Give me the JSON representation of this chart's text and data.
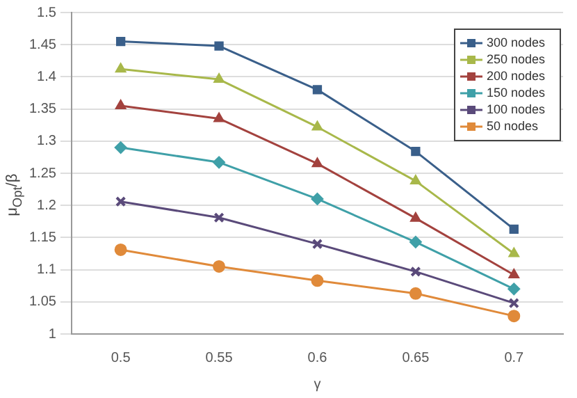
{
  "chart_data": {
    "type": "line",
    "xlabel": "γ",
    "ylabel": "μ$_{Opt}$/β",
    "categories": [
      "0.5",
      "0.55",
      "0.6",
      "0.65",
      "0.7"
    ],
    "ylim": [
      1,
      1.5
    ],
    "yticks": [
      1,
      1.05,
      1.1,
      1.15,
      1.2,
      1.25,
      1.3,
      1.35,
      1.4,
      1.45,
      1.5
    ],
    "grid": "y",
    "legend": "top right",
    "series": [
      {
        "name": "300 nodes",
        "color": "#3a5f8a",
        "marker": "square",
        "values": [
          1.455,
          1.448,
          1.38,
          1.284,
          1.163
        ]
      },
      {
        "name": "250 nodes",
        "color": "#a8b84a",
        "marker": "triangle",
        "values": [
          1.412,
          1.396,
          1.322,
          1.238,
          1.125
        ]
      },
      {
        "name": "200 nodes",
        "color": "#a3423e",
        "marker": "triangle",
        "values": [
          1.355,
          1.335,
          1.265,
          1.18,
          1.092
        ]
      },
      {
        "name": "150 nodes",
        "color": "#3fa0a8",
        "marker": "diamond",
        "values": [
          1.29,
          1.267,
          1.21,
          1.143,
          1.07
        ]
      },
      {
        "name": "100 nodes",
        "color": "#5a4a7a",
        "marker": "cross",
        "values": [
          1.206,
          1.181,
          1.14,
          1.097,
          1.048
        ]
      },
      {
        "name": "50 nodes",
        "color": "#e08a3a",
        "marker": "circle",
        "values": [
          1.131,
          1.105,
          1.083,
          1.063,
          1.028
        ]
      }
    ]
  }
}
